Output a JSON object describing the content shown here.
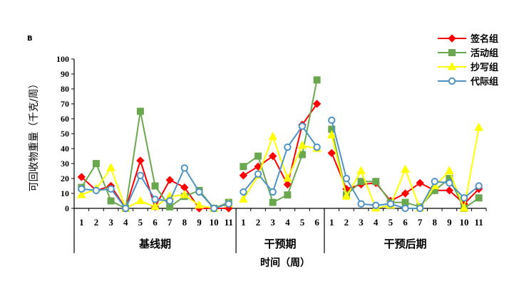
{
  "chart_data": {
    "type": "line",
    "panel_label": "B",
    "xlabel": "时间（周）",
    "ylabel": "可回收物重量（千克/周）",
    "ylim": [
      0,
      100
    ],
    "yticks": [
      0,
      10,
      20,
      30,
      40,
      50,
      60,
      70,
      80,
      90,
      100
    ],
    "legend_position": "top-right",
    "phases": [
      {
        "label": "基线期",
        "weeks": [
          "1",
          "2",
          "3",
          "4",
          "5",
          "6",
          "7",
          "8",
          "9",
          "10",
          "11"
        ]
      },
      {
        "label": "干预期",
        "weeks": [
          "1",
          "2",
          "3",
          "4",
          "5",
          "6"
        ]
      },
      {
        "label": "干预后期",
        "weeks": [
          "1",
          "2",
          "3",
          "4",
          "5",
          "6",
          "7",
          "8",
          "9",
          "10",
          "11"
        ]
      }
    ],
    "series": [
      {
        "name": "签名组",
        "color": "#ff0000",
        "marker": "diamond",
        "values": [
          21,
          12,
          15,
          0,
          32,
          1,
          19,
          14,
          0,
          0,
          0,
          22,
          28,
          35,
          16,
          56,
          70,
          37,
          13,
          16,
          17,
          5,
          10,
          17,
          12,
          12,
          3,
          13
        ]
      },
      {
        "name": "活动组",
        "color": "#6aa84f",
        "marker": "square",
        "values": [
          14,
          30,
          5,
          0,
          65,
          15,
          1,
          8,
          12,
          0,
          4,
          28,
          35,
          4,
          9,
          36,
          86,
          53,
          9,
          18,
          18,
          4,
          4,
          1,
          12,
          20,
          0,
          7
        ]
      },
      {
        "name": "抄写组",
        "color": "#ffff00",
        "marker": "triangle",
        "values": [
          9,
          13,
          27,
          0,
          5,
          1,
          8,
          9,
          2,
          0,
          3,
          6,
          22,
          48,
          20,
          42,
          40,
          49,
          8,
          25,
          0,
          2,
          26,
          0,
          15,
          25,
          0,
          54
        ]
      },
      {
        "name": "代际组",
        "color": "#4f93c5",
        "marker": "circle",
        "values": [
          13,
          12,
          13,
          0,
          22,
          6,
          5,
          27,
          11,
          0,
          3,
          11,
          23,
          11,
          41,
          55,
          41,
          59,
          20,
          3,
          2,
          3,
          0,
          0,
          18,
          17,
          7,
          15
        ]
      }
    ]
  }
}
